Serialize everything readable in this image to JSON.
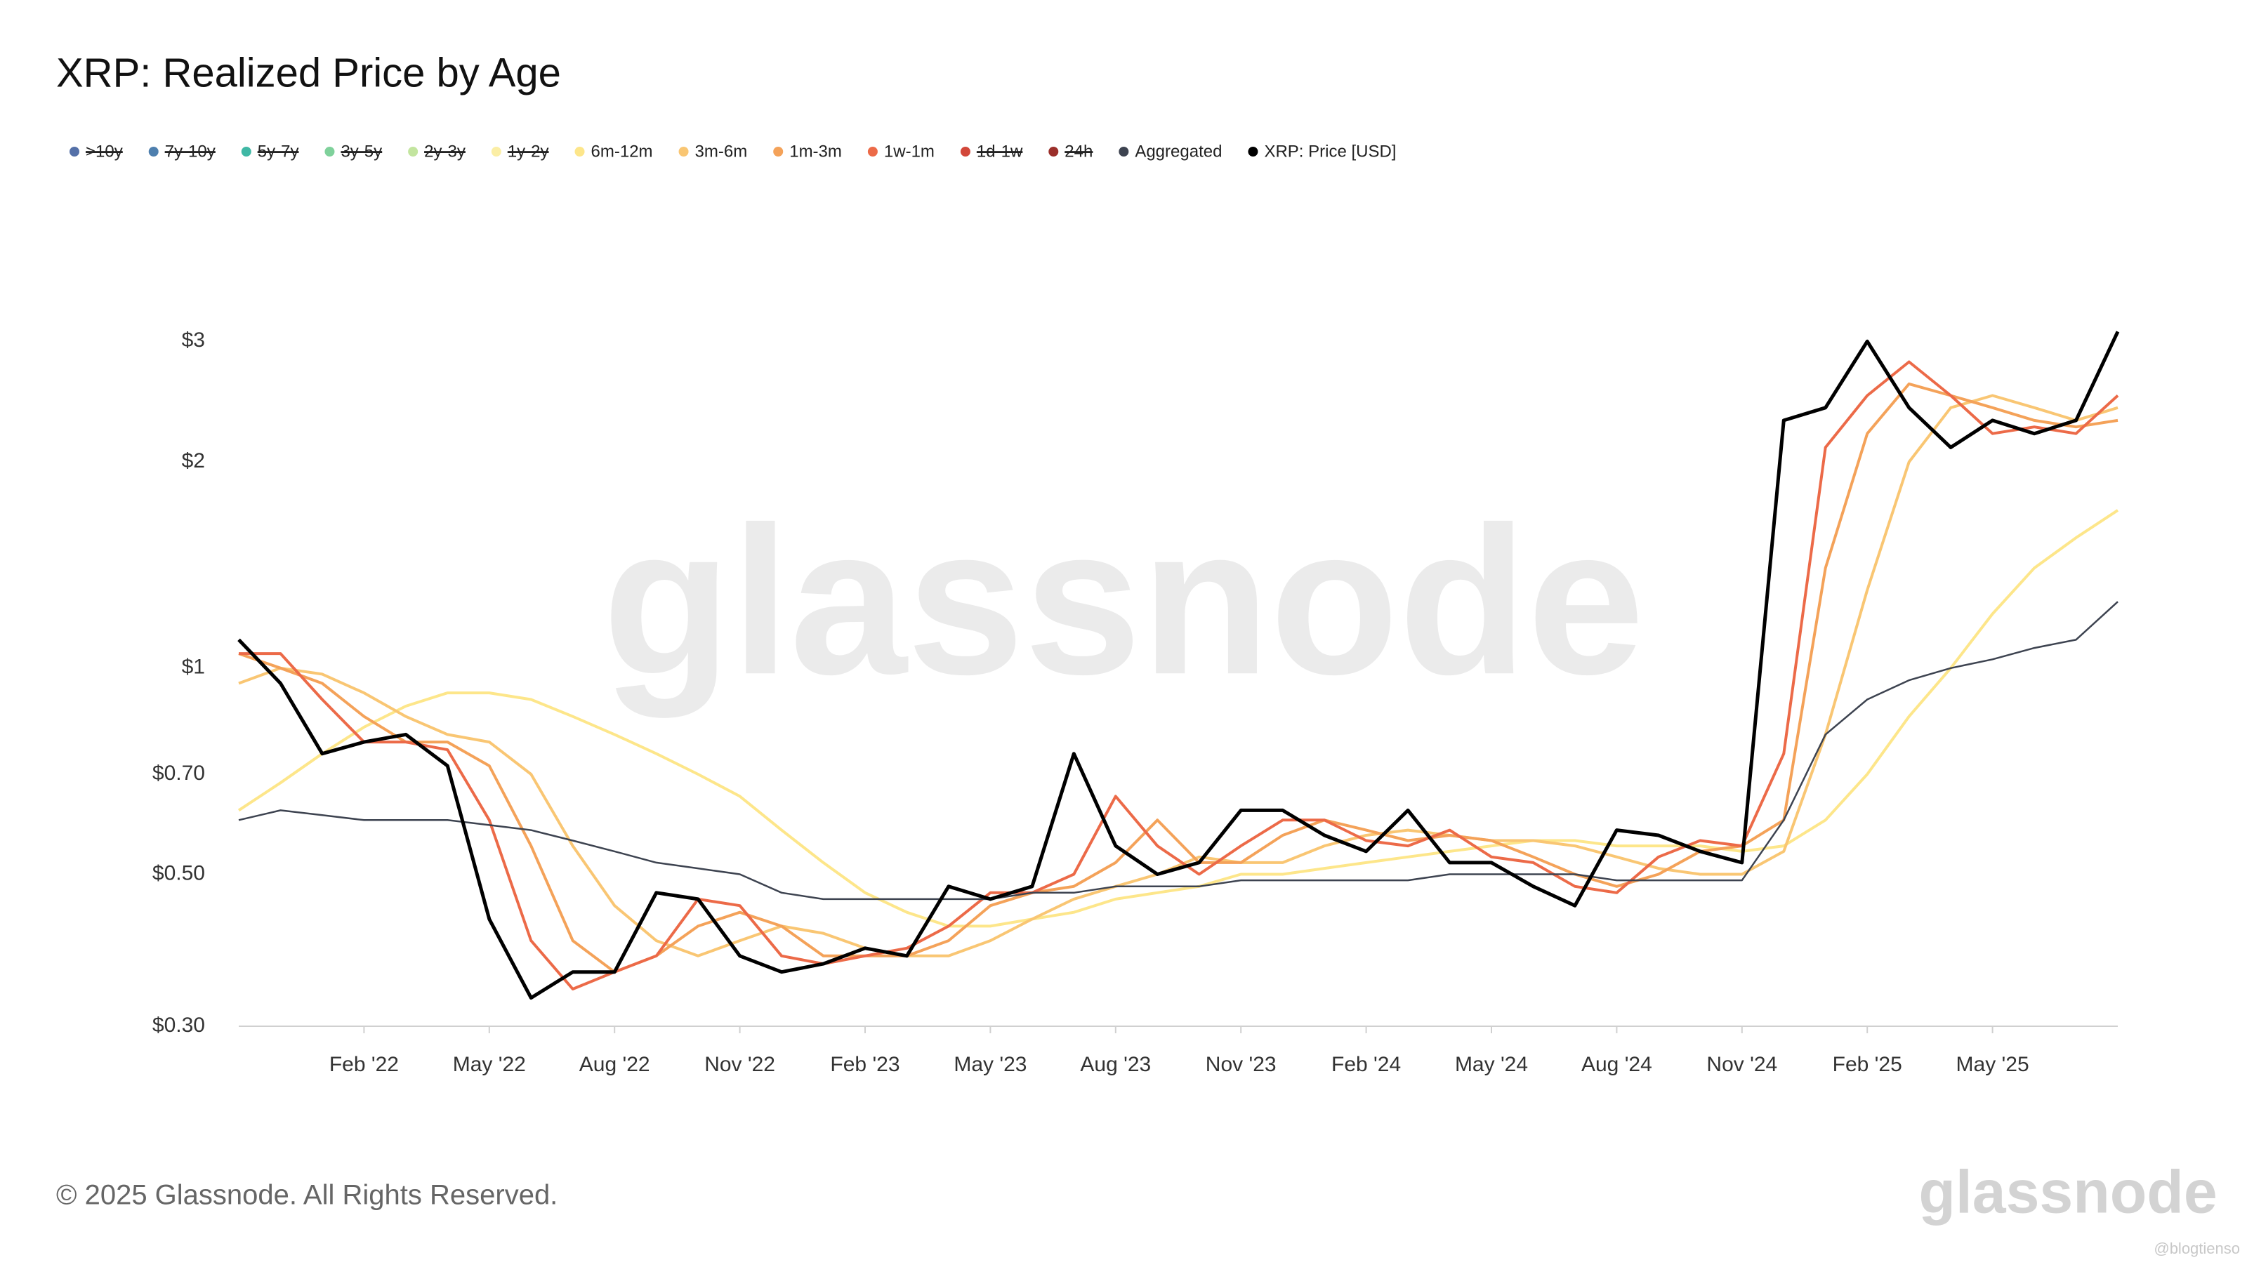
{
  "chart_data": {
    "type": "line",
    "title": "XRP: Realized Price by Age",
    "log_scale": true,
    "grid": false,
    "x": [
      "2021-11",
      "2021-12",
      "2022-01",
      "2022-02",
      "2022-03",
      "2022-04",
      "2022-05",
      "2022-06",
      "2022-07",
      "2022-08",
      "2022-09",
      "2022-10",
      "2022-11",
      "2022-12",
      "2023-01",
      "2023-02",
      "2023-03",
      "2023-04",
      "2023-05",
      "2023-06",
      "2023-07",
      "2023-08",
      "2023-09",
      "2023-10",
      "2023-11",
      "2023-12",
      "2024-01",
      "2024-02",
      "2024-03",
      "2024-04",
      "2024-05",
      "2024-06",
      "2024-07",
      "2024-08",
      "2024-09",
      "2024-10",
      "2024-11",
      "2024-12",
      "2025-01",
      "2025-02",
      "2025-03",
      "2025-04",
      "2025-05",
      "2025-06",
      "2025-07",
      "2025-08"
    ],
    "xlim": [
      "2021-11",
      "2025-08"
    ],
    "xticks": [
      {
        "value": "2022-02",
        "label": "Feb '22"
      },
      {
        "value": "2022-05",
        "label": "May '22"
      },
      {
        "value": "2022-08",
        "label": "Aug '22"
      },
      {
        "value": "2022-11",
        "label": "Nov '22"
      },
      {
        "value": "2023-02",
        "label": "Feb '23"
      },
      {
        "value": "2023-05",
        "label": "May '23"
      },
      {
        "value": "2023-08",
        "label": "Aug '23"
      },
      {
        "value": "2023-11",
        "label": "Nov '23"
      },
      {
        "value": "2024-02",
        "label": "Feb '24"
      },
      {
        "value": "2024-05",
        "label": "May '24"
      },
      {
        "value": "2024-08",
        "label": "Aug '24"
      },
      {
        "value": "2024-11",
        "label": "Nov '24"
      },
      {
        "value": "2025-02",
        "label": "Feb '25"
      },
      {
        "value": "2025-05",
        "label": "May '25"
      }
    ],
    "ylim": [
      0.3,
      3.6
    ],
    "yticks": [
      {
        "value": 0.3,
        "label": "$0.30"
      },
      {
        "value": 0.5,
        "label": "$0.50"
      },
      {
        "value": 0.7,
        "label": "$0.70"
      },
      {
        "value": 1,
        "label": "$1"
      },
      {
        "value": 2,
        "label": "$2"
      },
      {
        "value": 3,
        "label": "$3"
      }
    ],
    "series": [
      {
        "name": ">10y",
        "color": "#5470a8",
        "visible": false
      },
      {
        "name": "7y-10y",
        "color": "#4e7fae",
        "visible": false
      },
      {
        "name": "5y-7y",
        "color": "#3fb8a5",
        "visible": false
      },
      {
        "name": "3y-5y",
        "color": "#7fd19b",
        "visible": false
      },
      {
        "name": "2y-3y",
        "color": "#c3e59f",
        "visible": false
      },
      {
        "name": "1y-2y",
        "color": "#fbeea5",
        "visible": false
      },
      {
        "name": "6m-12m",
        "color": "#fde68a",
        "visible": true,
        "values": [
          0.62,
          0.68,
          0.75,
          0.82,
          0.88,
          0.92,
          0.92,
          0.9,
          0.85,
          0.8,
          0.75,
          0.7,
          0.65,
          0.58,
          0.52,
          0.47,
          0.44,
          0.42,
          0.42,
          0.43,
          0.44,
          0.46,
          0.47,
          0.48,
          0.5,
          0.5,
          0.51,
          0.52,
          0.53,
          0.54,
          0.55,
          0.56,
          0.56,
          0.55,
          0.55,
          0.55,
          0.54,
          0.55,
          0.6,
          0.7,
          0.85,
          1.0,
          1.2,
          1.4,
          1.55,
          1.7
        ]
      },
      {
        "name": "3m-6m",
        "color": "#f9c673",
        "visible": true,
        "values": [
          0.95,
          1.0,
          0.98,
          0.92,
          0.85,
          0.8,
          0.78,
          0.7,
          0.55,
          0.45,
          0.4,
          0.38,
          0.4,
          0.42,
          0.41,
          0.39,
          0.38,
          0.38,
          0.4,
          0.43,
          0.46,
          0.48,
          0.5,
          0.53,
          0.52,
          0.52,
          0.55,
          0.57,
          0.58,
          0.57,
          0.56,
          0.56,
          0.55,
          0.53,
          0.51,
          0.5,
          0.5,
          0.54,
          0.8,
          1.3,
          2.0,
          2.4,
          2.5,
          2.4,
          2.3,
          2.4
        ]
      },
      {
        "name": "1m-3m",
        "color": "#f4a259",
        "visible": true,
        "values": [
          1.05,
          1.0,
          0.95,
          0.85,
          0.78,
          0.78,
          0.72,
          0.55,
          0.4,
          0.36,
          0.38,
          0.42,
          0.44,
          0.42,
          0.38,
          0.38,
          0.38,
          0.4,
          0.45,
          0.47,
          0.48,
          0.52,
          0.6,
          0.52,
          0.52,
          0.57,
          0.6,
          0.58,
          0.56,
          0.57,
          0.56,
          0.53,
          0.5,
          0.48,
          0.5,
          0.54,
          0.55,
          0.6,
          1.4,
          2.2,
          2.6,
          2.5,
          2.4,
          2.3,
          2.25,
          2.3
        ]
      },
      {
        "name": "1w-1m",
        "color": "#ec6a48",
        "visible": true,
        "values": [
          1.05,
          1.05,
          0.9,
          0.78,
          0.78,
          0.76,
          0.6,
          0.4,
          0.34,
          0.36,
          0.38,
          0.46,
          0.45,
          0.38,
          0.37,
          0.38,
          0.39,
          0.42,
          0.47,
          0.47,
          0.5,
          0.65,
          0.55,
          0.5,
          0.55,
          0.6,
          0.6,
          0.56,
          0.55,
          0.58,
          0.53,
          0.52,
          0.48,
          0.47,
          0.53,
          0.56,
          0.55,
          0.75,
          2.1,
          2.5,
          2.8,
          2.5,
          2.2,
          2.25,
          2.2,
          2.5
        ]
      },
      {
        "name": "1d-1w",
        "color": "#d2473a",
        "visible": false
      },
      {
        "name": "24h",
        "color": "#9b2f2a",
        "visible": false
      },
      {
        "name": "Aggregated",
        "color": "#3d4350",
        "visible": true,
        "values": [
          0.6,
          0.62,
          0.61,
          0.6,
          0.6,
          0.6,
          0.59,
          0.58,
          0.56,
          0.54,
          0.52,
          0.51,
          0.5,
          0.47,
          0.46,
          0.46,
          0.46,
          0.46,
          0.46,
          0.47,
          0.47,
          0.48,
          0.48,
          0.48,
          0.49,
          0.49,
          0.49,
          0.49,
          0.49,
          0.5,
          0.5,
          0.5,
          0.5,
          0.49,
          0.49,
          0.49,
          0.49,
          0.6,
          0.8,
          0.9,
          0.96,
          1.0,
          1.03,
          1.07,
          1.1,
          1.25
        ]
      },
      {
        "name": "XRP: Price [USD]",
        "color": "#000000",
        "visible": true,
        "values": [
          1.1,
          0.95,
          0.75,
          0.78,
          0.8,
          0.72,
          0.43,
          0.33,
          0.36,
          0.36,
          0.47,
          0.46,
          0.38,
          0.36,
          0.37,
          0.39,
          0.38,
          0.48,
          0.46,
          0.48,
          0.75,
          0.55,
          0.5,
          0.52,
          0.62,
          0.62,
          0.57,
          0.54,
          0.62,
          0.52,
          0.52,
          0.48,
          0.45,
          0.58,
          0.57,
          0.54,
          0.52,
          2.3,
          2.4,
          3.0,
          2.4,
          2.1,
          2.3,
          2.2,
          2.3,
          3.1
        ]
      }
    ]
  },
  "watermark": "glassnode",
  "footer": {
    "copyright": "© 2025 Glassnode. All Rights Reserved.",
    "logo": "glassnode",
    "source_tag": "@blogtienso"
  }
}
